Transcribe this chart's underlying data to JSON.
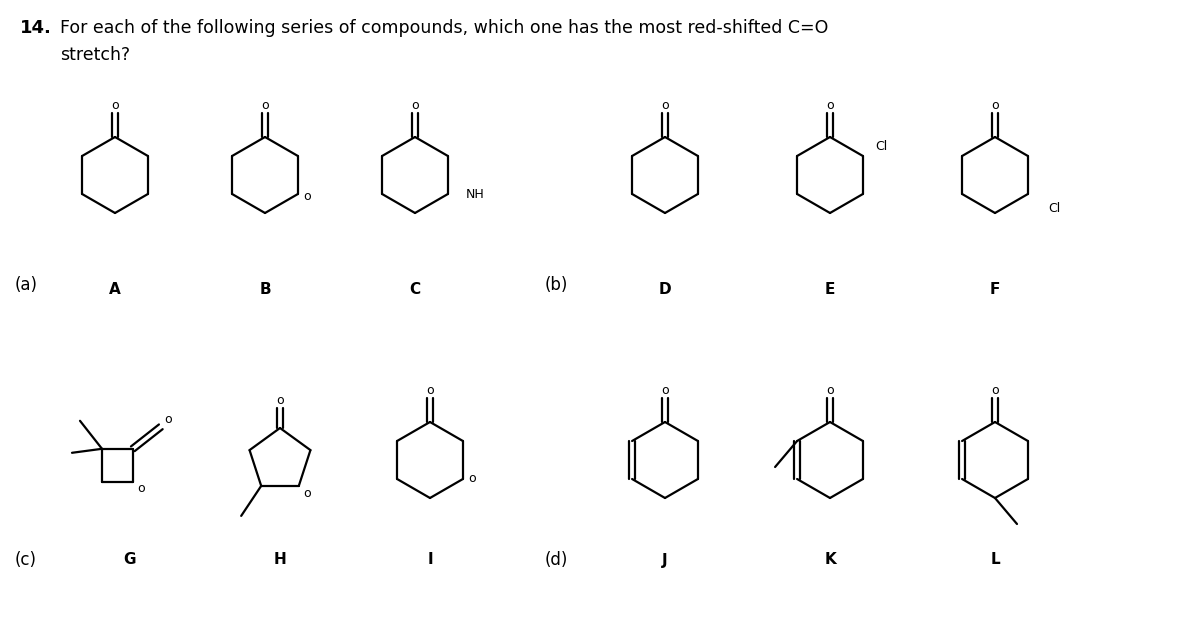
{
  "title_number": "14.",
  "title_text": "For each of the following series of compounds, which one has the most red-shifted C=O",
  "title_text2": "stretch?",
  "background_color": "#ffffff",
  "text_color": "#000000",
  "line_color": "#000000",
  "line_width": 1.6,
  "font_size_title": 13.5,
  "font_size_label": 11,
  "font_size_atom": 9.5
}
